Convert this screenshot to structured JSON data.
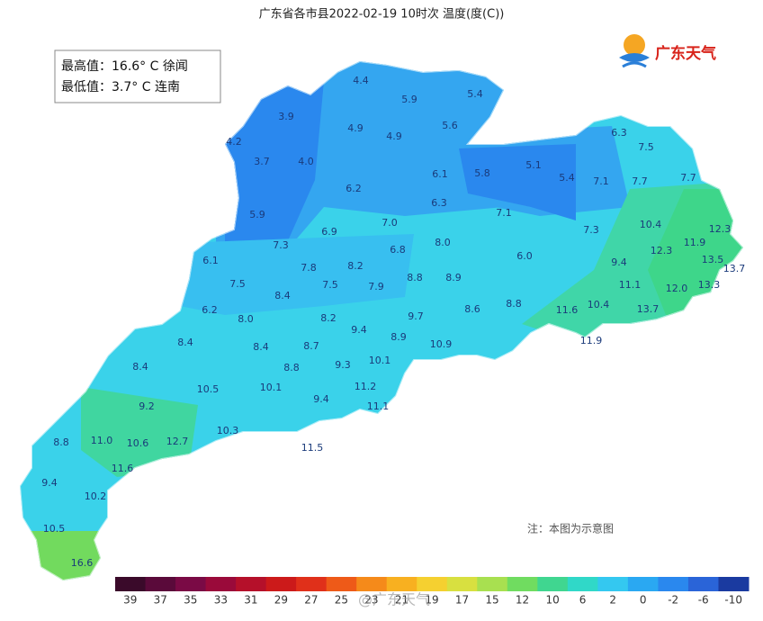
{
  "title": "广东省各市县2022-02-19  10时次  温度(度(C))",
  "stats": {
    "max": "最高值：16.6° C 徐闻",
    "min": "最低值：3.7° C 连南"
  },
  "logo": "广东天气",
  "note": "注：本图为示意图",
  "watermark": "@广东天气",
  "labels": [
    "4.4",
    "5.9",
    "5.4",
    "3.9",
    "4.9",
    "4.9",
    "5.6",
    "4.2",
    "3.7",
    "4.0",
    "6.3",
    "7.5",
    "5.8",
    "5.1",
    "5.4",
    "6.1",
    "7.1",
    "7.7",
    "7.7",
    "6.2",
    "6.3",
    "5.9",
    "7.1",
    "7.0",
    "10.4",
    "12.3",
    "7.3",
    "6.9",
    "7.3",
    "11.9",
    "12.3",
    "8.0",
    "6.8",
    "6.0",
    "13.5",
    "13.7",
    "6.1",
    "9.4",
    "8.2",
    "7.8",
    "7.5",
    "7.5",
    "7.9",
    "8.8",
    "8.9",
    "11.1",
    "12.0",
    "13.3",
    "8.4",
    "6.2",
    "8.8",
    "8.6",
    "10.4",
    "11.6",
    "13.7",
    "8.0",
    "8.2",
    "9.7",
    "9.4",
    "8.4",
    "8.4",
    "8.7",
    "8.9",
    "10.9",
    "11.9",
    "8.4",
    "8.8",
    "9.3",
    "10.1",
    "10.5",
    "10.1",
    "11.2",
    "9.2",
    "9.4",
    "11.1",
    "11.0",
    "12.7",
    "10.3",
    "10.6",
    "8.8",
    "11.5",
    "11.6",
    "9.4",
    "10.2",
    "10.5",
    "16.6"
  ],
  "legend": {
    "labels": [
      "39",
      "37",
      "35",
      "33",
      "31",
      "29",
      "27",
      "25",
      "23",
      "21",
      "19",
      "17",
      "15",
      "12",
      "10",
      "6",
      "2",
      "0",
      "-2",
      "-6",
      "-10"
    ],
    "colors": [
      "#3a0a2a",
      "#5a0a3a",
      "#7a0a45",
      "#9a0a3a",
      "#b5102a",
      "#cc1a1a",
      "#e0301a",
      "#ee5a18",
      "#f58a1a",
      "#f8b020",
      "#f5d030",
      "#d8e040",
      "#a8e050",
      "#70dc60",
      "#40d690",
      "#30d8c8",
      "#34c8f0",
      "#2aa8f2",
      "#2a88ee",
      "#2a64d8",
      "#1a3aa0"
    ]
  }
}
